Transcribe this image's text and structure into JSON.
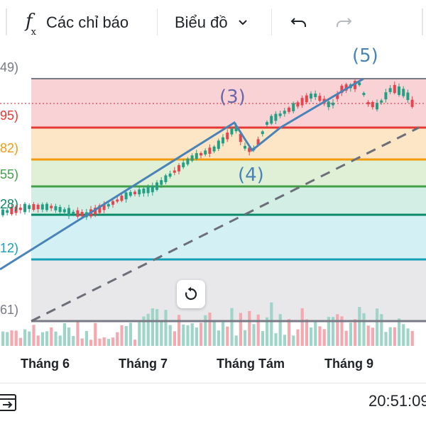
{
  "toolbar": {
    "indicators_label": "Các chỉ báo",
    "chart_type_label": "Biểu đồ",
    "icons": [
      "fx-icon",
      "chevron-down-icon",
      "undo-icon",
      "redo-icon"
    ]
  },
  "fib_levels": [
    {
      "label": "49)",
      "color": "#787b86"
    },
    {
      "label": "95)",
      "color": "#e53935"
    },
    {
      "label": "82)",
      "color": "#f29b0e"
    },
    {
      "label": "55)",
      "color": "#43a047"
    },
    {
      "label": "28)",
      "color": "#0b8a67"
    },
    {
      "label": "12)",
      "color": "#14a1b8"
    },
    {
      "label": "61)",
      "color": "#787b86"
    }
  ],
  "wave_labels": [
    "(3)",
    "(4)",
    "(5)"
  ],
  "x_axis": [
    "Tháng 6",
    "Tháng 7",
    "Tháng Tám",
    "Tháng 9"
  ],
  "footer": {
    "time": "20:51:09"
  },
  "colors": {
    "up": "#22a085",
    "down": "#e5454f",
    "wave": "#4a83b7"
  }
}
